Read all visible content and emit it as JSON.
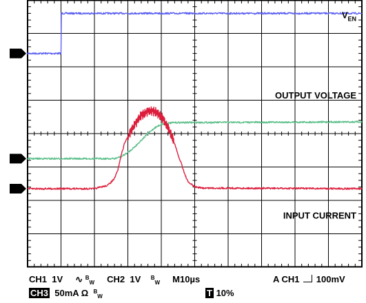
{
  "chart_data": {
    "type": "line",
    "title": "",
    "xlabel": "",
    "ylabel": "",
    "grid": true,
    "x_divisions": 10,
    "y_divisions": 8,
    "x_unit": "µs",
    "time_per_div_us": 10,
    "x_range_us": [
      0,
      100
    ],
    "trigger_position": "10%",
    "series": [
      {
        "name": "V_EN",
        "label": "V",
        "label_sub": "EN",
        "channel": "CH1",
        "marker": "1",
        "color": "#5a5ef0",
        "scale": "1V/div",
        "unit": "V",
        "ground_div": 6.4,
        "points": [
          [
            0,
            0.0
          ],
          [
            10.0,
            0.0
          ],
          [
            10.1,
            1.2
          ],
          [
            100,
            1.2
          ]
        ]
      },
      {
        "name": "OUTPUT VOLTAGE",
        "channel": "CH2",
        "marker": "2",
        "color": "#5fc08c",
        "scale": "1V/div",
        "unit": "V",
        "ground_div": 3.25,
        "points": [
          [
            0,
            0.0
          ],
          [
            26,
            0.0
          ],
          [
            28,
            0.06
          ],
          [
            30,
            0.18
          ],
          [
            32,
            0.35
          ],
          [
            34,
            0.55
          ],
          [
            36,
            0.75
          ],
          [
            38,
            0.92
          ],
          [
            40,
            1.03
          ],
          [
            42,
            1.06
          ],
          [
            44,
            1.08
          ],
          [
            100,
            1.1
          ]
        ]
      },
      {
        "name": "INPUT CURRENT",
        "channel": "CH3",
        "marker": "3",
        "color": "#dc1e3c",
        "scale": "50mA/div",
        "unit": "mA",
        "ground_div": 2.35,
        "points": [
          [
            0,
            0
          ],
          [
            20,
            0
          ],
          [
            24,
            5
          ],
          [
            26,
            15
          ],
          [
            27,
            28
          ],
          [
            28,
            50
          ],
          [
            29,
            68
          ],
          [
            30,
            78
          ],
          [
            32,
            96
          ],
          [
            34,
            110
          ],
          [
            36,
            116
          ],
          [
            38,
            116
          ],
          [
            40,
            108
          ],
          [
            42,
            92
          ],
          [
            44,
            68
          ],
          [
            45,
            50
          ],
          [
            46,
            38
          ],
          [
            47,
            22
          ],
          [
            48,
            10
          ],
          [
            50,
            3
          ],
          [
            52,
            1
          ],
          [
            100,
            0
          ]
        ]
      }
    ]
  },
  "footer": {
    "line1": {
      "ch1": "CH1",
      "ch1_scale": "1V",
      "coupling_symbol": "∿",
      "bw_sup": "B",
      "bw_sub": "W",
      "ch2": "CH2",
      "ch2_scale": "1V",
      "ch2_bw_sup": "B",
      "ch2_bw_sub": "W",
      "timebase": "M10µs",
      "trigger": "A  CH1",
      "trigger_edge": "⎍",
      "trigger_level": "100mV"
    },
    "line2": {
      "ch3": "CH3",
      "ch3_scale": "50mA Ω",
      "ch3_bw_sup": "B",
      "ch3_bw_sub": "W",
      "t_marker": "T",
      "position": "10%"
    }
  }
}
